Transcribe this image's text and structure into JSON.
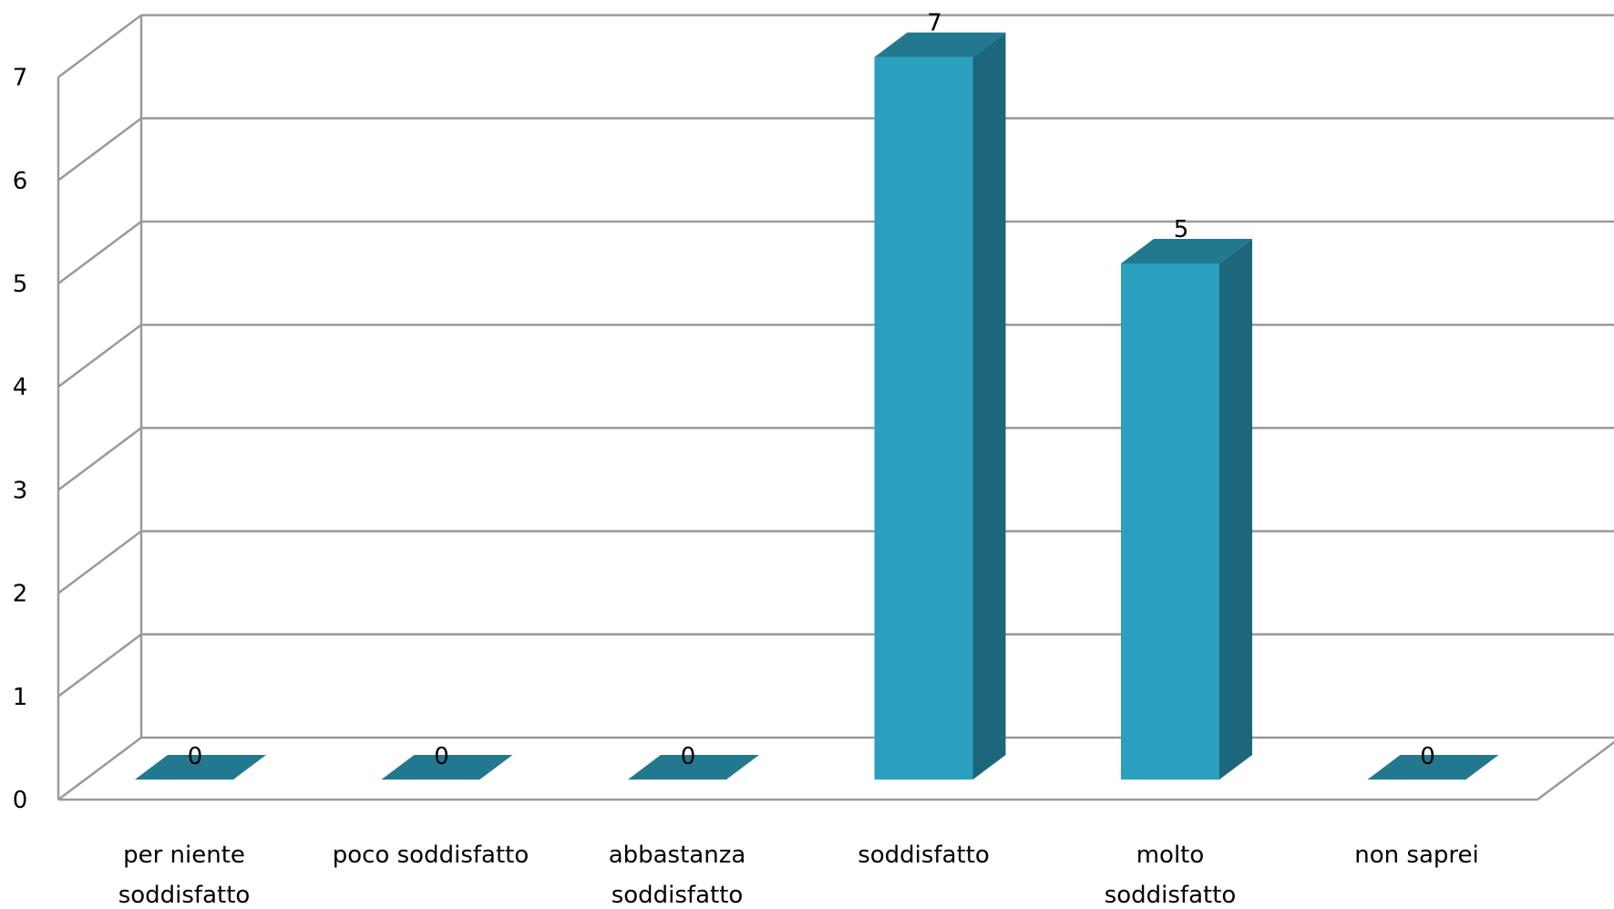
{
  "chart_data": {
    "type": "bar",
    "style": "3d",
    "categories": [
      [
        "per niente",
        "soddisfatto"
      ],
      [
        "poco soddisfatto"
      ],
      [
        "abbastanza",
        "soddisfatto"
      ],
      [
        "soddisfatto"
      ],
      [
        "molto",
        "soddisfatto"
      ],
      [
        "non saprei"
      ]
    ],
    "values": [
      0,
      0,
      0,
      7,
      5,
      0
    ],
    "data_labels": [
      "0",
      "0",
      "0",
      "7",
      "5",
      "0"
    ],
    "ylim": [
      0,
      7
    ],
    "yticks": [
      "0",
      "1",
      "2",
      "3",
      "4",
      "5",
      "6",
      "7"
    ],
    "grid": true,
    "legend": "none",
    "colors": {
      "bar_front": "#2ba0be",
      "bar_side": "#1c677b",
      "bar_top": "#22798f",
      "grid": "#9a9a9a"
    }
  }
}
